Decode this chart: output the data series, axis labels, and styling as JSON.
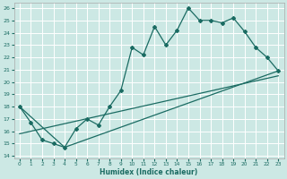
{
  "xlabel": "Humidex (Indice chaleur)",
  "bg_color": "#cce8e4",
  "grid_color": "#ffffff",
  "line_color": "#1a6b62",
  "xlim": [
    -0.5,
    23.5
  ],
  "ylim": [
    13.8,
    26.4
  ],
  "yticks": [
    14,
    15,
    16,
    17,
    18,
    19,
    20,
    21,
    22,
    23,
    24,
    25,
    26
  ],
  "xticks": [
    0,
    1,
    2,
    3,
    4,
    5,
    6,
    7,
    8,
    9,
    10,
    11,
    12,
    13,
    14,
    15,
    16,
    17,
    18,
    19,
    20,
    21,
    22,
    23
  ],
  "line1_x": [
    0,
    1,
    2,
    3,
    4,
    5,
    6,
    7,
    8,
    9,
    10,
    11,
    12,
    13,
    14,
    15,
    16,
    17,
    18,
    19,
    20,
    21,
    22,
    23
  ],
  "line1_y": [
    18.0,
    16.7,
    15.3,
    15.0,
    14.7,
    16.2,
    17.0,
    16.5,
    18.0,
    19.3,
    22.8,
    22.2,
    24.5,
    23.0,
    24.2,
    26.0,
    25.0,
    25.0,
    24.8,
    25.2,
    24.1,
    22.8,
    22.0,
    20.9
  ],
  "line1_marker_x": [
    0,
    1,
    2,
    3,
    4,
    5,
    6,
    7,
    8,
    9,
    10,
    11,
    12,
    13,
    14,
    15,
    16,
    17,
    18,
    19,
    20,
    21,
    22,
    23
  ],
  "line1_marker_y": [
    18.0,
    16.7,
    15.3,
    15.0,
    14.7,
    16.2,
    17.0,
    16.5,
    18.0,
    19.3,
    22.8,
    22.2,
    24.5,
    23.0,
    24.2,
    26.0,
    25.0,
    25.0,
    24.8,
    25.2,
    24.1,
    22.8,
    22.0,
    20.9
  ],
  "line2_x": [
    0,
    4,
    23
  ],
  "line2_y": [
    18.0,
    14.7,
    20.9
  ],
  "line3_x": [
    0,
    23
  ],
  "line3_y": [
    15.8,
    20.5
  ]
}
